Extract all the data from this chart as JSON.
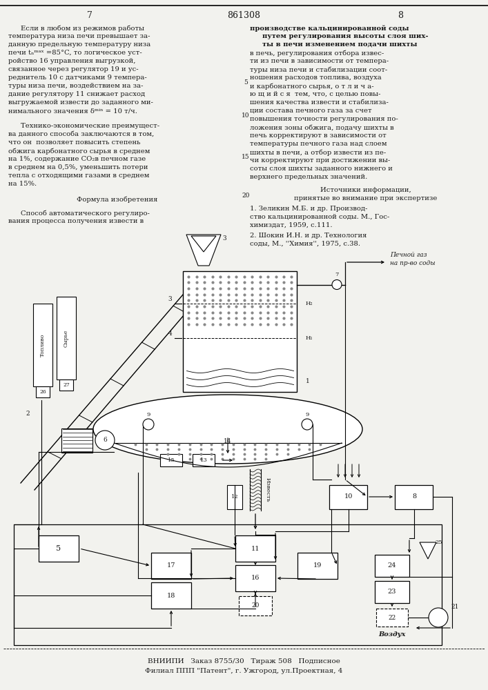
{
  "bg_color": "#f2f2ee",
  "text_color": "#1a1a1a",
  "page_num_left": "7",
  "page_num_center": "861308",
  "page_num_right": "8",
  "footer_line1": "ВНИИПИ   Заказ 8755/30   Тираж 508   Подписное",
  "footer_line2": "Филиал ППП \"Патент\", г. Ужгород, ул.Проектная, 4"
}
